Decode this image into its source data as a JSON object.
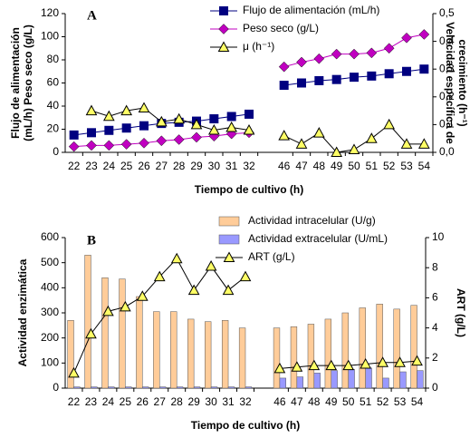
{
  "chart_data": [
    {
      "type": "line",
      "panel_label": "A",
      "xlabel": "Tiempo de cultivo (h)",
      "ylabel": [
        "Flujo de alimentación",
        "(mL/h) Peso seco (g/L)"
      ],
      "y2label": [
        "Velocidad específica de",
        "crecimiento (h⁻¹)"
      ],
      "categories": [
        "22",
        "23",
        "24",
        "25",
        "26",
        "27",
        "28",
        "29",
        "30",
        "31",
        "32",
        null,
        "46",
        "47",
        "48",
        "49",
        "50",
        "51",
        "52",
        "53",
        "54"
      ],
      "ylim": [
        0,
        120
      ],
      "yticks": [
        0,
        20,
        40,
        60,
        80,
        100,
        120
      ],
      "y2lim": [
        0,
        0.5
      ],
      "y2ticks": [
        {
          "value": 0,
          "label": "0,0"
        },
        {
          "value": 0.1,
          "label": "0,1"
        },
        {
          "value": 0.2,
          "label": "0,2"
        },
        {
          "value": 0.3,
          "label": "0,3"
        },
        {
          "value": 0.4,
          "label": "0,4"
        },
        {
          "value": 0.5,
          "label": "0,5"
        }
      ],
      "series": [
        {
          "name": "Flujo de alimentación (mL/h)",
          "color": "#000080",
          "marker": "square",
          "values": [
            15,
            17,
            19,
            21,
            23,
            25,
            26,
            27,
            29,
            31,
            33,
            null,
            58,
            60,
            62,
            63,
            65,
            66,
            68,
            70,
            72
          ]
        },
        {
          "name": "Peso seco (g/L)",
          "color": "#c000c0",
          "marker": "diamond",
          "values": [
            5,
            6,
            6,
            7,
            8,
            10,
            11,
            13,
            14,
            16,
            17,
            null,
            74,
            78,
            81,
            85,
            85,
            86,
            90,
            99,
            102
          ]
        },
        {
          "name": "μ (h⁻¹)",
          "color": "#000000",
          "marker": "triangle",
          "axis": "y2",
          "values": [
            null,
            0.15,
            0.13,
            0.15,
            0.16,
            0.11,
            0.12,
            0.1,
            0.08,
            0.09,
            0.08,
            null,
            0.06,
            0.03,
            0.07,
            0.0,
            0.01,
            0.05,
            0.1,
            0.03,
            0.03
          ]
        }
      ]
    },
    {
      "type": "bar",
      "panel_label": "B",
      "xlabel": "Tiempo de cultivo (h)",
      "ylabel": [
        "Actividad enzimática"
      ],
      "y2label": [
        "ART (g/L)"
      ],
      "categories": [
        "22",
        "23",
        "24",
        "25",
        "26",
        "27",
        "28",
        "29",
        "30",
        "31",
        "32",
        null,
        "46",
        "47",
        "48",
        "49",
        "50",
        "51",
        "52",
        "53",
        "54"
      ],
      "ylim": [
        0,
        600
      ],
      "yticks": [
        0,
        100,
        200,
        300,
        400,
        500,
        600
      ],
      "y2lim": [
        0,
        10
      ],
      "y2ticks": [
        0,
        2,
        4,
        6,
        8,
        10
      ],
      "series": [
        {
          "name": "Actividad intracelular (U/g)",
          "color": "#ffcc99",
          "type": "bar",
          "values": [
            270,
            530,
            440,
            435,
            365,
            305,
            305,
            275,
            265,
            270,
            240,
            null,
            240,
            245,
            255,
            275,
            300,
            320,
            335,
            315,
            330
          ]
        },
        {
          "name": "Actividad extracelular (U/mL)",
          "color": "#9999ff",
          "type": "bar",
          "values": [
            5,
            5,
            5,
            5,
            5,
            5,
            5,
            5,
            5,
            5,
            5,
            null,
            40,
            45,
            60,
            70,
            75,
            80,
            40,
            65,
            70
          ]
        },
        {
          "name": "ART (g/L)",
          "color": "#000000",
          "type": "line",
          "marker": "triangle",
          "axis": "y2",
          "values": [
            1.0,
            3.6,
            5.1,
            5.4,
            6.1,
            7.4,
            8.6,
            6.5,
            8.1,
            6.5,
            7.4,
            null,
            1.3,
            1.4,
            1.5,
            1.5,
            1.5,
            1.6,
            1.7,
            1.7,
            1.8
          ]
        }
      ]
    }
  ]
}
